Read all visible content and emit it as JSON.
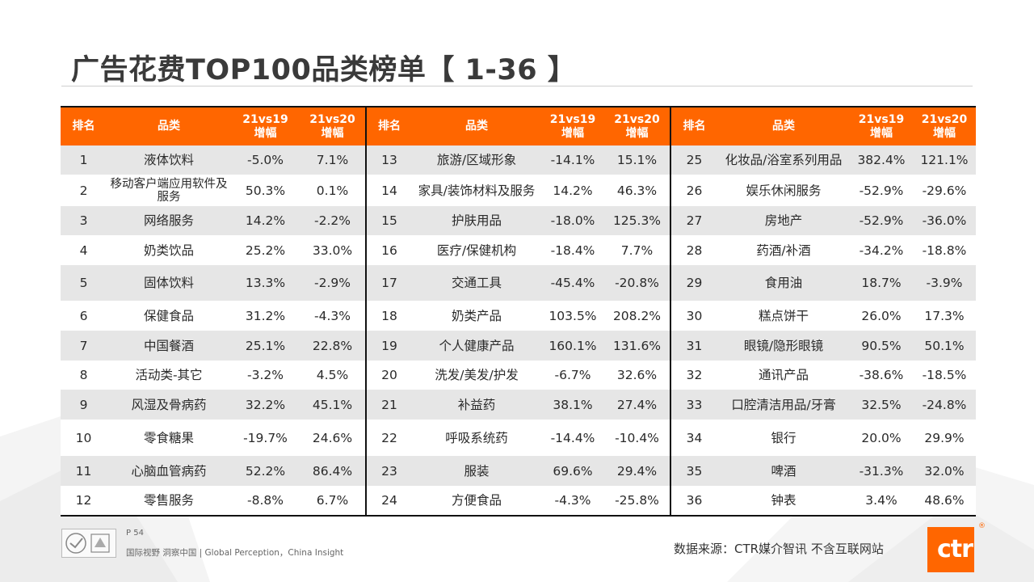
{
  "title": "广告花费TOP100品类榜单【 1-36 】",
  "headers": {
    "rank": "排名",
    "category": "品类",
    "g19_line1": "21vs19",
    "g19_line2": "增幅",
    "g20_line1": "21vs20",
    "g20_line2": "增幅"
  },
  "rows": [
    [
      {
        "rank": "1",
        "category": "液体饮料",
        "g19": "-5.0%",
        "g20": "7.1%"
      },
      {
        "rank": "13",
        "category": "旅游/区域形象",
        "g19": "-14.1%",
        "g20": "15.1%"
      },
      {
        "rank": "25",
        "category": "化妆品/浴室系列用品",
        "g19": "382.4%",
        "g20": "121.1%"
      }
    ],
    [
      {
        "rank": "2",
        "category": "移动客户端应用软件及服务",
        "g19": "50.3%",
        "g20": "0.1%"
      },
      {
        "rank": "14",
        "category": "家具/装饰材料及服务",
        "g19": "14.2%",
        "g20": "46.3%"
      },
      {
        "rank": "26",
        "category": "娱乐休闲服务",
        "g19": "-52.9%",
        "g20": "-29.6%"
      }
    ],
    [
      {
        "rank": "3",
        "category": "网络服务",
        "g19": "14.2%",
        "g20": "-2.2%"
      },
      {
        "rank": "15",
        "category": "护肤用品",
        "g19": "-18.0%",
        "g20": "125.3%"
      },
      {
        "rank": "27",
        "category": "房地产",
        "g19": "-52.9%",
        "g20": "-36.0%"
      }
    ],
    [
      {
        "rank": "4",
        "category": "奶类饮品",
        "g19": "25.2%",
        "g20": "33.0%"
      },
      {
        "rank": "16",
        "category": "医疗/保健机构",
        "g19": "-18.4%",
        "g20": "7.7%"
      },
      {
        "rank": "28",
        "category": "药酒/补酒",
        "g19": "-34.2%",
        "g20": "-18.8%"
      }
    ],
    [
      {
        "rank": "5",
        "category": "固体饮料",
        "g19": "13.3%",
        "g20": "-2.9%"
      },
      {
        "rank": "17",
        "category": "交通工具",
        "g19": "-45.4%",
        "g20": "-20.8%"
      },
      {
        "rank": "29",
        "category": "食用油",
        "g19": "18.7%",
        "g20": "-3.9%"
      }
    ],
    [
      {
        "rank": "6",
        "category": "保健食品",
        "g19": "31.2%",
        "g20": "-4.3%"
      },
      {
        "rank": "18",
        "category": "奶类产品",
        "g19": "103.5%",
        "g20": "208.2%"
      },
      {
        "rank": "30",
        "category": "糕点饼干",
        "g19": "26.0%",
        "g20": "17.3%"
      }
    ],
    [
      {
        "rank": "7",
        "category": "中国餐酒",
        "g19": "25.1%",
        "g20": "22.8%"
      },
      {
        "rank": "19",
        "category": "个人健康产品",
        "g19": "160.1%",
        "g20": "131.6%"
      },
      {
        "rank": "31",
        "category": "眼镜/隐形眼镜",
        "g19": "90.5%",
        "g20": "50.1%"
      }
    ],
    [
      {
        "rank": "8",
        "category": "活动类-其它",
        "g19": "-3.2%",
        "g20": "4.5%"
      },
      {
        "rank": "20",
        "category": "洗发/美发/护发",
        "g19": "-6.7%",
        "g20": "32.6%"
      },
      {
        "rank": "32",
        "category": "通讯产品",
        "g19": "-38.6%",
        "g20": "-18.5%"
      }
    ],
    [
      {
        "rank": "9",
        "category": "风湿及骨病药",
        "g19": "32.2%",
        "g20": "45.1%"
      },
      {
        "rank": "21",
        "category": "补益药",
        "g19": "38.1%",
        "g20": "27.4%"
      },
      {
        "rank": "33",
        "category": "口腔清洁用品/牙膏",
        "g19": "32.5%",
        "g20": "-24.8%"
      }
    ],
    [
      {
        "rank": "10",
        "category": "零食糖果",
        "g19": "-19.7%",
        "g20": "24.6%"
      },
      {
        "rank": "22",
        "category": "呼吸系统药",
        "g19": "-14.4%",
        "g20": "-10.4%"
      },
      {
        "rank": "34",
        "category": "银行",
        "g19": "20.0%",
        "g20": "29.9%"
      }
    ],
    [
      {
        "rank": "11",
        "category": "心脑血管病药",
        "g19": "52.2%",
        "g20": "86.4%"
      },
      {
        "rank": "23",
        "category": "服装",
        "g19": "69.6%",
        "g20": "29.4%"
      },
      {
        "rank": "35",
        "category": "啤酒",
        "g19": "-31.3%",
        "g20": "32.0%"
      }
    ],
    [
      {
        "rank": "12",
        "category": "零售服务",
        "g19": "-8.8%",
        "g20": "6.7%"
      },
      {
        "rank": "24",
        "category": "方便食品",
        "g19": "-4.3%",
        "g20": "-25.8%"
      },
      {
        "rank": "36",
        "category": "钟表",
        "g19": "3.4%",
        "g20": "48.6%"
      }
    ]
  ],
  "footer": {
    "page": "P 54",
    "tagline": "国际视野  洞察中国 |  Global Perception，China Insight",
    "source": "数据来源：CTR媒介智讯  不含互联网站",
    "logo_text": "ctr",
    "logo_mark": "®"
  },
  "colors": {
    "header_bg": "#ff6600",
    "stripe": "#e6e6e6"
  }
}
